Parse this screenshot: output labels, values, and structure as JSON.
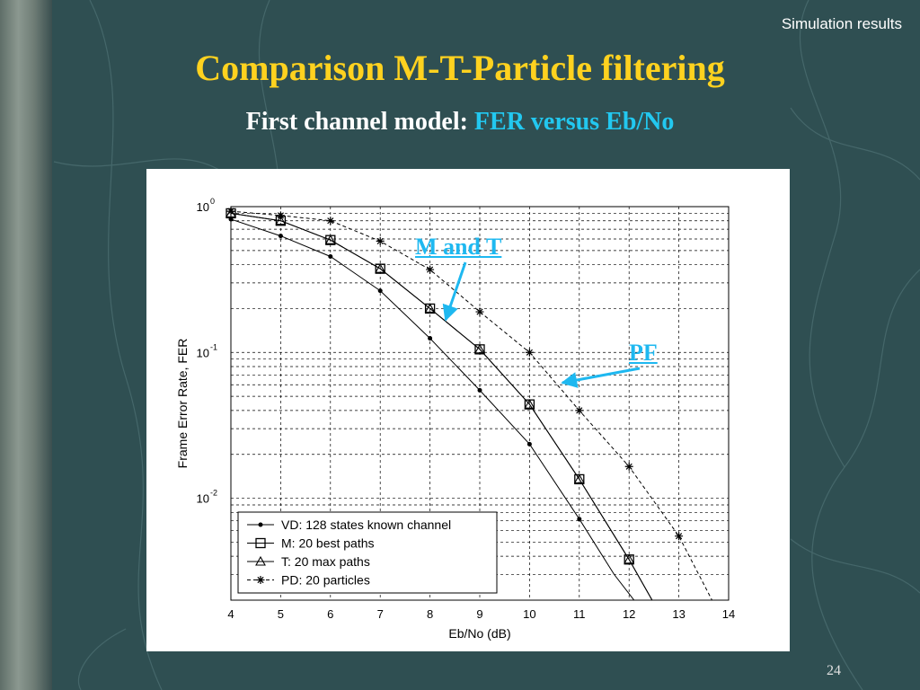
{
  "slide": {
    "corner_label": "Simulation results",
    "title": "Comparison M-T-Particle filtering",
    "subtitle_prefix": "First channel model:",
    "subtitle_highlight": "FER versus Eb/No",
    "page_number": "24",
    "accent_title_color": "#ffd21f",
    "accent_highlight_color": "#22c8f0",
    "background_color": "#2f4f52"
  },
  "annotations": {
    "m_and_t": "M and T",
    "pf": "PF",
    "arrow_color": "#1eb8f0"
  },
  "chart_data": {
    "type": "line",
    "title": "",
    "xlabel": "Eb/No (dB)",
    "ylabel": "Frame Error Rate, FER",
    "xlim": [
      4,
      14
    ],
    "ylim": [
      0.002,
      1
    ],
    "yscale": "log",
    "grid": true,
    "legend_position": "bottom-left",
    "x_ticks": [
      4,
      5,
      6,
      7,
      8,
      9,
      10,
      11,
      12,
      13,
      14
    ],
    "y_ticks": [
      {
        "value": 1,
        "base": "10",
        "exp": "0"
      },
      {
        "value": 0.1,
        "base": "10",
        "exp": "-1"
      },
      {
        "value": 0.01,
        "base": "10",
        "exp": "-2"
      }
    ],
    "series": [
      {
        "name": "VD: 128 states known channel",
        "marker": "dot",
        "dash": "solid",
        "x": [
          4,
          5,
          6,
          7,
          8,
          9,
          10,
          11,
          11.7,
          12.15
        ],
        "y": [
          0.82,
          0.63,
          0.455,
          0.265,
          0.125,
          0.055,
          0.0235,
          0.0072,
          0.003,
          0.0019
        ]
      },
      {
        "name": "M: 20 best paths",
        "marker": "square",
        "dash": "solid",
        "x": [
          4,
          5,
          6,
          7,
          8,
          9,
          10,
          11,
          12,
          12.5
        ],
        "y": [
          0.9,
          0.8,
          0.59,
          0.375,
          0.2,
          0.105,
          0.044,
          0.0135,
          0.0038,
          0.0019
        ]
      },
      {
        "name": "T: 20 max paths",
        "marker": "triangle",
        "dash": "solid",
        "x": [
          4,
          5,
          6,
          7,
          8,
          9,
          10,
          11,
          12,
          12.5
        ],
        "y": [
          0.9,
          0.8,
          0.59,
          0.375,
          0.2,
          0.105,
          0.044,
          0.0135,
          0.0038,
          0.0019
        ]
      },
      {
        "name": "PD: 20 particles",
        "marker": "star",
        "dash": "dashed",
        "x": [
          4,
          5,
          6,
          7,
          8,
          9,
          10,
          11,
          12,
          13,
          13.7
        ],
        "y": [
          0.93,
          0.87,
          0.8,
          0.58,
          0.37,
          0.19,
          0.1,
          0.04,
          0.0165,
          0.0055,
          0.0019
        ]
      }
    ]
  }
}
